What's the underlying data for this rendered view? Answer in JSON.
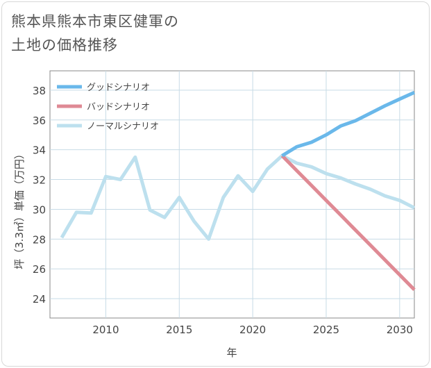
{
  "title": {
    "line1": "熊本県熊本市東区健軍の",
    "line2": "土地の価格推移"
  },
  "chart_data": {
    "type": "line",
    "xlabel": "年",
    "ylabel": "坪（3.3㎡）単価（万円）",
    "xlim": [
      2006.2,
      2031
    ],
    "ylim": [
      22.7,
      39.3
    ],
    "xticks": [
      2010,
      2015,
      2020,
      2025,
      2030
    ],
    "yticks": [
      24,
      26,
      28,
      30,
      32,
      34,
      36,
      38
    ],
    "grid": true,
    "legend_position": "top-left",
    "series": [
      {
        "name": "グッドシナリオ",
        "color": "#6ab8ea",
        "x": [
          2022,
          2023,
          2024,
          2025,
          2026,
          2027,
          2028,
          2029,
          2030,
          2031
        ],
        "y": [
          33.6,
          34.2,
          34.5,
          35.0,
          35.6,
          35.95,
          36.45,
          36.95,
          37.4,
          37.85
        ]
      },
      {
        "name": "バッドシナリオ",
        "color": "#df8a94",
        "x": [
          2022,
          2023,
          2024,
          2025,
          2026,
          2027,
          2028,
          2029,
          2030,
          2031
        ],
        "y": [
          33.6,
          32.6,
          31.6,
          30.6,
          29.6,
          28.6,
          27.6,
          26.6,
          25.6,
          24.6
        ]
      },
      {
        "name": "ノーマルシナリオ",
        "color": "#bde0ee",
        "x": [
          2007,
          2008,
          2009,
          2010,
          2011,
          2012,
          2013,
          2014,
          2015,
          2016,
          2017,
          2018,
          2019,
          2020,
          2021,
          2022,
          2023,
          2024,
          2025,
          2026,
          2027,
          2028,
          2029,
          2030,
          2031
        ],
        "y": [
          28.1,
          29.8,
          29.75,
          32.2,
          32.0,
          33.5,
          29.95,
          29.45,
          30.8,
          29.2,
          28.0,
          30.8,
          32.25,
          31.2,
          32.7,
          33.6,
          33.1,
          32.85,
          32.4,
          32.1,
          31.7,
          31.35,
          30.9,
          30.6,
          30.1
        ]
      }
    ]
  }
}
